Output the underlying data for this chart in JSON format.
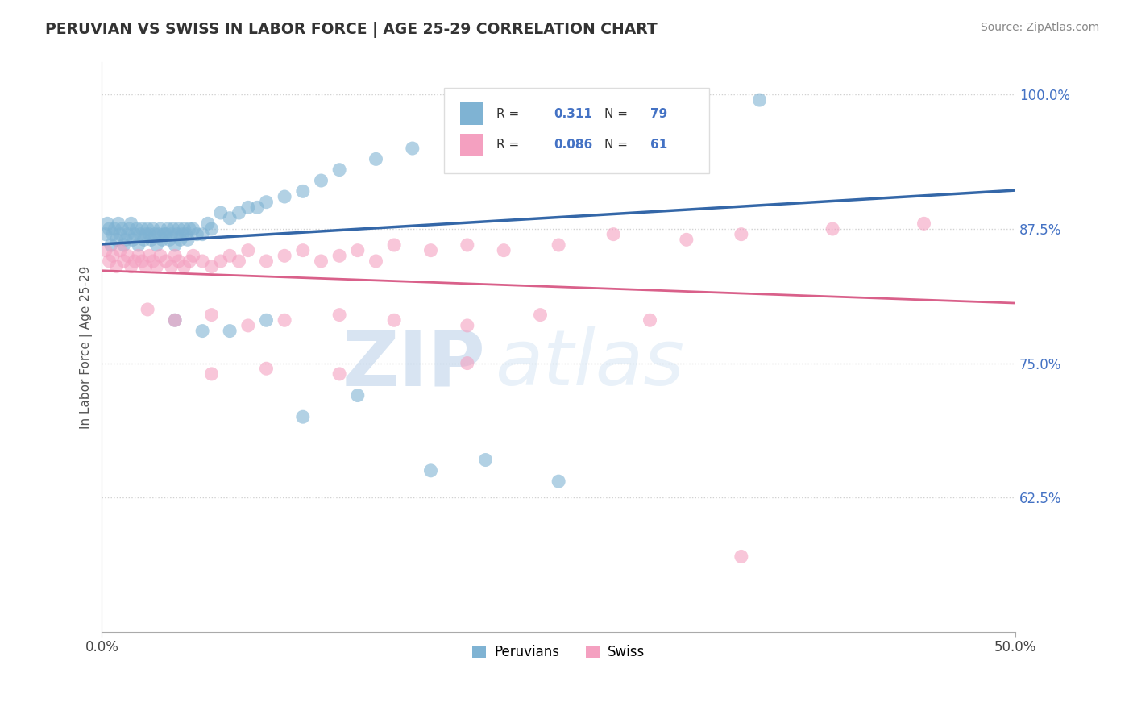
{
  "title": "PERUVIAN VS SWISS IN LABOR FORCE | AGE 25-29 CORRELATION CHART",
  "source_text": "Source: ZipAtlas.com",
  "ylabel": "In Labor Force | Age 25-29",
  "xlim": [
    0.0,
    0.5
  ],
  "ylim": [
    0.5,
    1.03
  ],
  "ytick_positions": [
    0.625,
    0.75,
    0.875,
    1.0
  ],
  "ytick_labels": [
    "62.5%",
    "75.0%",
    "87.5%",
    "100.0%"
  ],
  "blue_R": 0.311,
  "blue_N": 79,
  "pink_R": 0.086,
  "pink_N": 61,
  "blue_color": "#7fb3d3",
  "pink_color": "#f4a0c0",
  "blue_line_color": "#3467a8",
  "pink_line_color": "#d9608a",
  "watermark_zip": "ZIP",
  "watermark_atlas": "atlas",
  "legend_labels": [
    "Peruvians",
    "Swiss"
  ],
  "blue_scatter_x": [
    0.002,
    0.003,
    0.004,
    0.005,
    0.006,
    0.007,
    0.008,
    0.009,
    0.01,
    0.011,
    0.012,
    0.013,
    0.014,
    0.015,
    0.016,
    0.017,
    0.018,
    0.019,
    0.02,
    0.021,
    0.022,
    0.023,
    0.024,
    0.025,
    0.026,
    0.027,
    0.028,
    0.029,
    0.03,
    0.031,
    0.032,
    0.033,
    0.034,
    0.035,
    0.036,
    0.037,
    0.038,
    0.039,
    0.04,
    0.041,
    0.042,
    0.043,
    0.044,
    0.045,
    0.046,
    0.047,
    0.048,
    0.05,
    0.052,
    0.055,
    0.058,
    0.06,
    0.065,
    0.07,
    0.075,
    0.08,
    0.085,
    0.09,
    0.1,
    0.11,
    0.12,
    0.13,
    0.15,
    0.17,
    0.2,
    0.22,
    0.25,
    0.28,
    0.32,
    0.36,
    0.04,
    0.055,
    0.07,
    0.09,
    0.11,
    0.14,
    0.18,
    0.21,
    0.25
  ],
  "blue_scatter_y": [
    0.87,
    0.88,
    0.875,
    0.86,
    0.87,
    0.875,
    0.865,
    0.88,
    0.87,
    0.875,
    0.86,
    0.865,
    0.87,
    0.875,
    0.88,
    0.865,
    0.87,
    0.875,
    0.86,
    0.87,
    0.875,
    0.865,
    0.87,
    0.875,
    0.87,
    0.865,
    0.875,
    0.87,
    0.86,
    0.87,
    0.875,
    0.865,
    0.87,
    0.87,
    0.875,
    0.865,
    0.87,
    0.875,
    0.86,
    0.87,
    0.875,
    0.865,
    0.87,
    0.875,
    0.87,
    0.865,
    0.875,
    0.875,
    0.87,
    0.87,
    0.88,
    0.875,
    0.89,
    0.885,
    0.89,
    0.895,
    0.895,
    0.9,
    0.905,
    0.91,
    0.92,
    0.93,
    0.94,
    0.95,
    0.96,
    0.965,
    0.975,
    0.98,
    0.99,
    0.995,
    0.79,
    0.78,
    0.78,
    0.79,
    0.7,
    0.72,
    0.65,
    0.66,
    0.64
  ],
  "pink_scatter_x": [
    0.002,
    0.004,
    0.006,
    0.008,
    0.01,
    0.012,
    0.014,
    0.016,
    0.018,
    0.02,
    0.022,
    0.024,
    0.026,
    0.028,
    0.03,
    0.032,
    0.035,
    0.038,
    0.04,
    0.042,
    0.045,
    0.048,
    0.05,
    0.055,
    0.06,
    0.065,
    0.07,
    0.075,
    0.08,
    0.09,
    0.1,
    0.11,
    0.12,
    0.13,
    0.14,
    0.15,
    0.16,
    0.18,
    0.2,
    0.22,
    0.25,
    0.28,
    0.32,
    0.35,
    0.4,
    0.45,
    0.025,
    0.04,
    0.06,
    0.08,
    0.1,
    0.13,
    0.16,
    0.2,
    0.24,
    0.3,
    0.06,
    0.09,
    0.13,
    0.2,
    0.35
  ],
  "pink_scatter_y": [
    0.855,
    0.845,
    0.85,
    0.84,
    0.855,
    0.845,
    0.85,
    0.84,
    0.845,
    0.85,
    0.845,
    0.84,
    0.85,
    0.845,
    0.84,
    0.85,
    0.845,
    0.84,
    0.85,
    0.845,
    0.84,
    0.845,
    0.85,
    0.845,
    0.84,
    0.845,
    0.85,
    0.845,
    0.855,
    0.845,
    0.85,
    0.855,
    0.845,
    0.85,
    0.855,
    0.845,
    0.86,
    0.855,
    0.86,
    0.855,
    0.86,
    0.87,
    0.865,
    0.87,
    0.875,
    0.88,
    0.8,
    0.79,
    0.795,
    0.785,
    0.79,
    0.795,
    0.79,
    0.785,
    0.795,
    0.79,
    0.74,
    0.745,
    0.74,
    0.75,
    0.57
  ]
}
